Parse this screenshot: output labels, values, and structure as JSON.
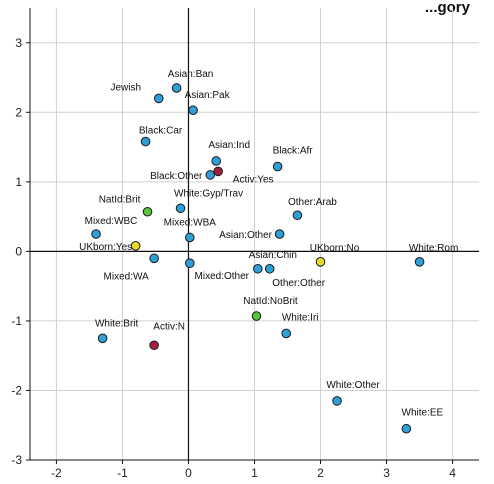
{
  "chart_data": {
    "type": "scatter",
    "title": "...gory",
    "xlabel": "",
    "ylabel": "",
    "xlim": [
      -2.4,
      4.4
    ],
    "ylim": [
      -3,
      3.5
    ],
    "xticks": [
      -2,
      -1,
      0,
      1,
      2,
      3,
      4
    ],
    "yticks": [
      -3,
      -2,
      -1,
      0,
      1,
      2,
      3
    ],
    "grid": true,
    "colors": {
      "category": "#2f9fda",
      "activ": "#a3203f",
      "natid": "#5cc43a",
      "ukborn": "#e8dc22",
      "outline": "#1a1a1a",
      "grid": "#d0d0d0",
      "axis": "#111111"
    },
    "points": [
      {
        "label": "Jewish",
        "x": -0.45,
        "y": 2.2,
        "group": "category"
      },
      {
        "label": "Asian:Ban",
        "x": -0.18,
        "y": 2.35,
        "group": "category"
      },
      {
        "label": "Asian:Pak",
        "x": 0.07,
        "y": 2.03,
        "group": "category"
      },
      {
        "label": "Black:Car",
        "x": -0.65,
        "y": 1.58,
        "group": "category"
      },
      {
        "label": "Asian:Ind",
        "x": 0.42,
        "y": 1.3,
        "group": "category"
      },
      {
        "label": "Black:Other",
        "x": 0.33,
        "y": 1.1,
        "group": "category"
      },
      {
        "label": "Activ:Yes",
        "x": 0.45,
        "y": 1.15,
        "group": "activ"
      },
      {
        "label": "Black:Afr",
        "x": 1.35,
        "y": 1.22,
        "group": "category"
      },
      {
        "label": "NatId:Brit",
        "x": -0.62,
        "y": 0.57,
        "group": "natid"
      },
      {
        "label": "White:Gyp/Trav",
        "x": -0.12,
        "y": 0.62,
        "group": "category"
      },
      {
        "label": "Other:Arab",
        "x": 1.65,
        "y": 0.52,
        "group": "category"
      },
      {
        "label": "Mixed:WBC",
        "x": -1.4,
        "y": 0.25,
        "group": "category"
      },
      {
        "label": "Mixed:WBA",
        "x": 0.02,
        "y": 0.2,
        "group": "category"
      },
      {
        "label": "Asian:Other",
        "x": 1.38,
        "y": 0.25,
        "group": "category"
      },
      {
        "label": "UKborn:Yes",
        "x": -0.8,
        "y": 0.08,
        "group": "ukborn"
      },
      {
        "label": "Mixed:WA",
        "x": -0.52,
        "y": -0.1,
        "group": "category"
      },
      {
        "label": "Mixed:Other",
        "x": 0.02,
        "y": -0.17,
        "group": "category"
      },
      {
        "label": "Asian:Chin",
        "x": 1.05,
        "y": -0.25,
        "group": "category"
      },
      {
        "label": "Other:Other",
        "x": 1.23,
        "y": -0.25,
        "group": "category"
      },
      {
        "label": "UKborn:No",
        "x": 2.0,
        "y": -0.15,
        "group": "ukborn"
      },
      {
        "label": "White:Rom",
        "x": 3.5,
        "y": -0.15,
        "group": "category"
      },
      {
        "label": "NatId:NoBrit",
        "x": 1.03,
        "y": -0.93,
        "group": "natid"
      },
      {
        "label": "White:Iri",
        "x": 1.48,
        "y": -1.18,
        "group": "category"
      },
      {
        "label": "White:Brit",
        "x": -1.3,
        "y": -1.25,
        "group": "category"
      },
      {
        "label": "Activ:N",
        "x": -0.52,
        "y": -1.35,
        "group": "activ"
      },
      {
        "label": "White:Other",
        "x": 2.25,
        "y": -2.15,
        "group": "category"
      },
      {
        "label": "White:EE",
        "x": 3.3,
        "y": -2.55,
        "group": "category"
      }
    ]
  }
}
